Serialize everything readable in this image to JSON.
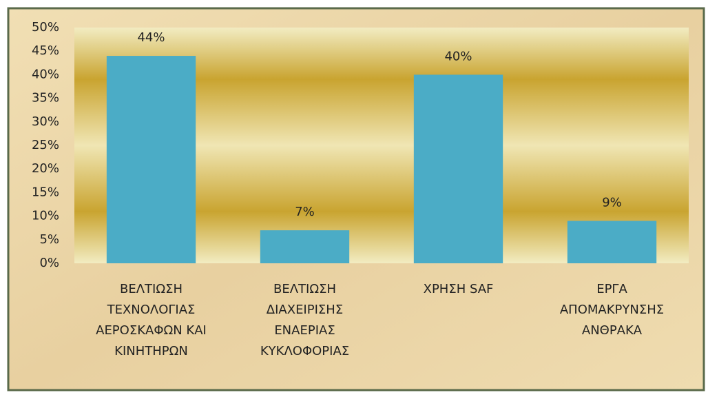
{
  "chart_data": {
    "type": "bar",
    "categories": [
      "ΒΕΛΤΙΩΣΗ\nΤΕΧΝΟΛΟΓΙΑΣ\nΑΕΡΟΣΚΑΦΩΝ ΚΑΙ\nΚΙΝΗΤΗΡΩΝ",
      "ΒΕΛΤΙΩΣΗ\nΔΙΑΧΕΙΡΙΣΗΣ\nΕΝΑΕΡΙΑΣ\nΚΥΚΛΟΦΟΡΙΑΣ",
      "ΧΡΗΣΗ SAF",
      "ΕΡΓΑ\nΑΠΟΜΑΚΡΥΝΣΗΣ\nΑΝΘΡΑΚΑ"
    ],
    "values": [
      44,
      7,
      40,
      9
    ],
    "value_labels": [
      "44%",
      "7%",
      "40%",
      "9%"
    ],
    "color": "#4bacc6",
    "ylim": [
      0,
      50
    ],
    "yticks": [
      {
        "value": 0,
        "label": "0%"
      },
      {
        "value": 5,
        "label": "5%"
      },
      {
        "value": 10,
        "label": "10%"
      },
      {
        "value": 15,
        "label": "15%"
      },
      {
        "value": 20,
        "label": "20%"
      },
      {
        "value": 25,
        "label": "25%"
      },
      {
        "value": 30,
        "label": "30%"
      },
      {
        "value": 35,
        "label": "35%"
      },
      {
        "value": 40,
        "label": "40%"
      },
      {
        "value": 45,
        "label": "45%"
      },
      {
        "value": 50,
        "label": "50%"
      }
    ],
    "grid": false
  }
}
